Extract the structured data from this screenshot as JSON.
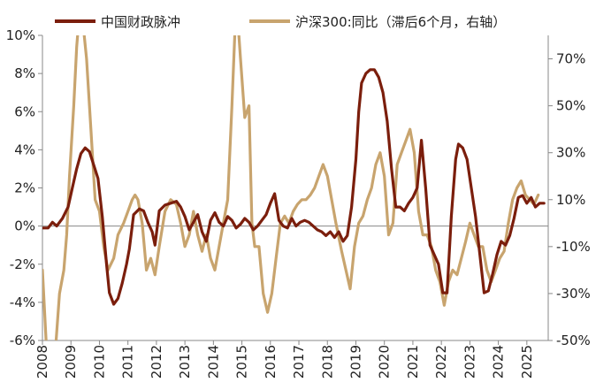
{
  "chart_data": {
    "type": "line",
    "title": "",
    "legend_position": "top",
    "grid": false,
    "x_ticks": [
      "2008",
      "2009",
      "2010",
      "2011",
      "2012",
      "2013",
      "2014",
      "2015",
      "2016",
      "2017",
      "2018",
      "2019",
      "2020",
      "2021",
      "2022",
      "2023",
      "2024",
      "2025"
    ],
    "x_range": [
      2008.0,
      2025.75
    ],
    "left_axis": {
      "ylim": [
        -6,
        10
      ],
      "ticks": [
        -6,
        -4,
        -2,
        0,
        2,
        4,
        6,
        8,
        10
      ],
      "tick_labels": [
        "-6%",
        "-4%",
        "-2%",
        "0%",
        "2%",
        "4%",
        "6%",
        "8%",
        "10%"
      ]
    },
    "right_axis": {
      "ylim": [
        -50,
        80
      ],
      "ticks": [
        -50,
        -30,
        -10,
        10,
        30,
        50,
        70
      ],
      "tick_labels": [
        "-50%",
        "-30%",
        "-10%",
        "10%",
        "30%",
        "50%",
        "70%"
      ]
    },
    "series": [
      {
        "name": "中国财政脉冲",
        "axis": "left",
        "color": "#7B1E0C",
        "x": [
          2008.0,
          2008.2,
          2008.35,
          2008.5,
          2008.7,
          2008.9,
          2009.05,
          2009.2,
          2009.35,
          2009.5,
          2009.65,
          2009.8,
          2009.95,
          2010.1,
          2010.25,
          2010.35,
          2010.5,
          2010.65,
          2010.8,
          2010.95,
          2011.05,
          2011.2,
          2011.4,
          2011.55,
          2011.7,
          2011.85,
          2011.95,
          2012.1,
          2012.3,
          2012.5,
          2012.7,
          2012.85,
          2013.0,
          2013.15,
          2013.3,
          2013.45,
          2013.6,
          2013.75,
          2013.9,
          2014.05,
          2014.2,
          2014.35,
          2014.5,
          2014.65,
          2014.8,
          2014.95,
          2015.1,
          2015.25,
          2015.4,
          2015.55,
          2015.7,
          2015.85,
          2016.0,
          2016.15,
          2016.3,
          2016.45,
          2016.6,
          2016.75,
          2016.9,
          2017.05,
          2017.2,
          2017.35,
          2017.5,
          2017.65,
          2017.8,
          2017.95,
          2018.1,
          2018.25,
          2018.4,
          2018.55,
          2018.7,
          2018.85,
          2019.0,
          2019.1,
          2019.2,
          2019.35,
          2019.5,
          2019.65,
          2019.8,
          2019.95,
          2020.1,
          2020.25,
          2020.4,
          2020.55,
          2020.7,
          2020.85,
          2021.0,
          2021.15,
          2021.3,
          2021.45,
          2021.6,
          2021.75,
          2021.9,
          2022.05,
          2022.2,
          2022.35,
          2022.5,
          2022.6,
          2022.75,
          2022.9,
          2023.05,
          2023.2,
          2023.35,
          2023.5,
          2023.65,
          2023.8,
          2023.95,
          2024.1,
          2024.25,
          2024.4,
          2024.55,
          2024.7,
          2024.85,
          2025.0,
          2025.15,
          2025.3,
          2025.45,
          2025.6
        ],
        "y": [
          -0.1,
          -0.1,
          0.2,
          0.0,
          0.4,
          1.0,
          2.0,
          3.0,
          3.8,
          4.1,
          3.9,
          3.2,
          2.5,
          0.5,
          -2.0,
          -3.5,
          -4.1,
          -3.8,
          -3.0,
          -2.0,
          -1.2,
          0.6,
          0.9,
          0.8,
          0.2,
          -0.3,
          -1.0,
          0.8,
          1.1,
          1.2,
          1.3,
          1.0,
          0.5,
          -0.2,
          0.2,
          0.6,
          -0.3,
          -0.8,
          0.3,
          0.7,
          0.2,
          0.0,
          0.5,
          0.3,
          -0.1,
          0.1,
          0.4,
          0.2,
          -0.2,
          0.0,
          0.3,
          0.6,
          1.2,
          1.7,
          0.3,
          0.0,
          -0.1,
          0.4,
          0.0,
          0.2,
          0.3,
          0.2,
          0.0,
          -0.2,
          -0.3,
          -0.5,
          -0.3,
          -0.6,
          -0.3,
          -0.8,
          -0.5,
          1.0,
          3.5,
          6.0,
          7.5,
          8.0,
          8.2,
          8.2,
          7.8,
          7.0,
          5.5,
          3.0,
          1.0,
          1.0,
          0.8,
          1.2,
          1.5,
          2.0,
          4.5,
          2.0,
          -1.0,
          -1.5,
          -2.0,
          -3.5,
          -3.5,
          0.5,
          3.5,
          4.3,
          4.1,
          3.5,
          2.0,
          0.5,
          -1.5,
          -3.5,
          -3.4,
          -2.5,
          -1.5,
          -0.8,
          -1.0,
          -0.5,
          0.4,
          1.5,
          1.6,
          1.2,
          1.5,
          1.0,
          1.2,
          1.2
        ]
      },
      {
        "name": "沪深300:同比（滞后6个月，右轴）",
        "axis": "right",
        "color": "#C8A46E",
        "x": [
          2008.0,
          2008.15,
          2008.3,
          2008.45,
          2008.6,
          2008.75,
          2008.85,
          2008.95,
          2009.1,
          2009.2,
          2009.3,
          2009.45,
          2009.55,
          2009.7,
          2009.85,
          2010.0,
          2010.15,
          2010.3,
          2010.5,
          2010.65,
          2010.85,
          2011.0,
          2011.15,
          2011.25,
          2011.35,
          2011.5,
          2011.65,
          2011.8,
          2011.95,
          2012.1,
          2012.3,
          2012.5,
          2012.7,
          2012.85,
          2013.0,
          2013.15,
          2013.3,
          2013.45,
          2013.6,
          2013.75,
          2013.9,
          2014.05,
          2014.2,
          2014.35,
          2014.5,
          2014.65,
          2014.75,
          2014.85,
          2014.95,
          2015.1,
          2015.25,
          2015.35,
          2015.45,
          2015.6,
          2015.75,
          2015.9,
          2016.05,
          2016.2,
          2016.35,
          2016.5,
          2016.65,
          2016.8,
          2016.95,
          2017.1,
          2017.25,
          2017.4,
          2017.55,
          2017.7,
          2017.85,
          2018.0,
          2018.15,
          2018.3,
          2018.5,
          2018.65,
          2018.8,
          2018.95,
          2019.1,
          2019.25,
          2019.4,
          2019.55,
          2019.7,
          2019.85,
          2020.0,
          2020.15,
          2020.3,
          2020.45,
          2020.6,
          2020.75,
          2020.9,
          2021.05,
          2021.2,
          2021.35,
          2021.5,
          2021.65,
          2021.8,
          2021.95,
          2022.1,
          2022.25,
          2022.4,
          2022.55,
          2022.7,
          2022.85,
          2023.0,
          2023.15,
          2023.3,
          2023.45,
          2023.6,
          2023.75,
          2023.9,
          2024.05,
          2024.2,
          2024.35,
          2024.5,
          2024.65,
          2024.8,
          2024.95,
          2025.1,
          2025.25,
          2025.4
        ],
        "y": [
          -20,
          -55,
          -60,
          -55,
          -30,
          -20,
          -5,
          20,
          50,
          75,
          90,
          82,
          70,
          40,
          10,
          5,
          -10,
          -20,
          -15,
          -5,
          0,
          5,
          10,
          12,
          10,
          0,
          -20,
          -15,
          -22,
          -10,
          5,
          10,
          8,
          0,
          -10,
          -5,
          5,
          -5,
          -12,
          -5,
          -15,
          -20,
          -10,
          0,
          10,
          50,
          80,
          88,
          70,
          45,
          50,
          0,
          -10,
          -10,
          -30,
          -38,
          -30,
          -15,
          0,
          3,
          0,
          5,
          8,
          10,
          10,
          12,
          15,
          20,
          25,
          20,
          10,
          0,
          -12,
          -20,
          -28,
          -10,
          0,
          3,
          10,
          15,
          25,
          30,
          20,
          -5,
          0,
          25,
          30,
          35,
          40,
          30,
          5,
          -5,
          -5,
          -10,
          -20,
          -25,
          -35,
          -25,
          -20,
          -22,
          -15,
          -8,
          0,
          -5,
          -10,
          -10,
          -20,
          -25,
          -20,
          -15,
          -12,
          0,
          10,
          15,
          18,
          12,
          10,
          8,
          12
        ]
      }
    ]
  }
}
